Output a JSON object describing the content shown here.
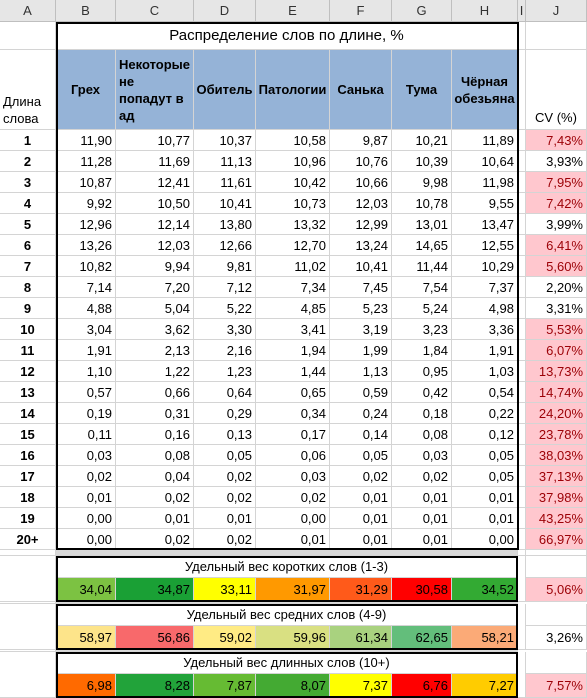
{
  "column_headers": [
    "A",
    "B",
    "C",
    "D",
    "E",
    "F",
    "G",
    "H",
    "I",
    "J"
  ],
  "table": {
    "title": "Распределение слов по длине, %",
    "row_header": "Длина слова",
    "headers": [
      "Грех",
      "Некоторые не попадут в ад",
      "Обитель",
      "Патологии",
      "Санька",
      "Тума",
      "Чёрная обезьяна"
    ],
    "cv_header": "CV (%)",
    "header_fill": "#95b3d7",
    "highlight_fill": "#ffc7ce",
    "highlight_text": "#9c0006",
    "rows": [
      {
        "label": "1",
        "values": [
          "11,90",
          "10,77",
          "10,37",
          "10,58",
          "9,87",
          "10,21",
          "11,89"
        ],
        "cv": "7,43%",
        "highlight": true
      },
      {
        "label": "2",
        "values": [
          "11,28",
          "11,69",
          "11,13",
          "10,96",
          "10,76",
          "10,39",
          "10,64"
        ],
        "cv": "3,93%",
        "highlight": false
      },
      {
        "label": "3",
        "values": [
          "10,87",
          "12,41",
          "11,61",
          "10,42",
          "10,66",
          "9,98",
          "11,98"
        ],
        "cv": "7,95%",
        "highlight": true
      },
      {
        "label": "4",
        "values": [
          "9,92",
          "10,50",
          "10,41",
          "10,73",
          "12,03",
          "10,78",
          "9,55"
        ],
        "cv": "7,42%",
        "highlight": true
      },
      {
        "label": "5",
        "values": [
          "12,96",
          "12,14",
          "13,80",
          "13,32",
          "12,99",
          "13,01",
          "13,47"
        ],
        "cv": "3,99%",
        "highlight": false
      },
      {
        "label": "6",
        "values": [
          "13,26",
          "12,03",
          "12,66",
          "12,70",
          "13,24",
          "14,65",
          "12,55"
        ],
        "cv": "6,41%",
        "highlight": true
      },
      {
        "label": "7",
        "values": [
          "10,82",
          "9,94",
          "9,81",
          "11,02",
          "10,41",
          "11,44",
          "10,29"
        ],
        "cv": "5,60%",
        "highlight": true
      },
      {
        "label": "8",
        "values": [
          "7,14",
          "7,20",
          "7,12",
          "7,34",
          "7,45",
          "7,54",
          "7,37"
        ],
        "cv": "2,20%",
        "highlight": false
      },
      {
        "label": "9",
        "values": [
          "4,88",
          "5,04",
          "5,22",
          "4,85",
          "5,23",
          "5,24",
          "4,98"
        ],
        "cv": "3,31%",
        "highlight": false
      },
      {
        "label": "10",
        "values": [
          "3,04",
          "3,62",
          "3,30",
          "3,41",
          "3,19",
          "3,23",
          "3,36"
        ],
        "cv": "5,53%",
        "highlight": true
      },
      {
        "label": "11",
        "values": [
          "1,91",
          "2,13",
          "2,16",
          "1,94",
          "1,99",
          "1,84",
          "1,91"
        ],
        "cv": "6,07%",
        "highlight": true
      },
      {
        "label": "12",
        "values": [
          "1,10",
          "1,22",
          "1,23",
          "1,44",
          "1,13",
          "0,95",
          "1,03"
        ],
        "cv": "13,73%",
        "highlight": true
      },
      {
        "label": "13",
        "values": [
          "0,57",
          "0,66",
          "0,64",
          "0,65",
          "0,59",
          "0,42",
          "0,54"
        ],
        "cv": "14,74%",
        "highlight": true
      },
      {
        "label": "14",
        "values": [
          "0,19",
          "0,31",
          "0,29",
          "0,34",
          "0,24",
          "0,18",
          "0,22"
        ],
        "cv": "24,20%",
        "highlight": true
      },
      {
        "label": "15",
        "values": [
          "0,11",
          "0,16",
          "0,13",
          "0,17",
          "0,14",
          "0,08",
          "0,12"
        ],
        "cv": "23,78%",
        "highlight": true
      },
      {
        "label": "16",
        "values": [
          "0,03",
          "0,08",
          "0,05",
          "0,06",
          "0,05",
          "0,03",
          "0,05"
        ],
        "cv": "38,03%",
        "highlight": true
      },
      {
        "label": "17",
        "values": [
          "0,02",
          "0,04",
          "0,02",
          "0,03",
          "0,02",
          "0,02",
          "0,05"
        ],
        "cv": "37,13%",
        "highlight": true
      },
      {
        "label": "18",
        "values": [
          "0,01",
          "0,02",
          "0,02",
          "0,02",
          "0,01",
          "0,01",
          "0,01"
        ],
        "cv": "37,98%",
        "highlight": true
      },
      {
        "label": "19",
        "values": [
          "0,00",
          "0,01",
          "0,01",
          "0,00",
          "0,01",
          "0,01",
          "0,01"
        ],
        "cv": "43,25%",
        "highlight": true
      },
      {
        "label": "20+",
        "values": [
          "0,00",
          "0,02",
          "0,02",
          "0,01",
          "0,01",
          "0,01",
          "0,00"
        ],
        "cv": "66,97%",
        "highlight": true
      }
    ]
  },
  "summary": [
    {
      "label": "Удельный вес коротких слов (1-3)",
      "values": [
        "34,04",
        "34,87",
        "33,11",
        "31,97",
        "31,29",
        "30,58",
        "34,52"
      ],
      "fills": [
        "#7cc242",
        "#1aa035",
        "#ffff00",
        "#ff9900",
        "#ff5a1a",
        "#ff0000",
        "#33aa33"
      ],
      "cv": "5,06%",
      "highlight": true
    },
    {
      "label": "Удельный вес средних слов (4-9)",
      "values": [
        "58,97",
        "56,86",
        "59,02",
        "59,96",
        "61,34",
        "62,65",
        "58,21"
      ],
      "fills": [
        "#fde48a",
        "#f8696b",
        "#ffeb84",
        "#d9e082",
        "#a9d27f",
        "#63be7b",
        "#fbaa77"
      ],
      "cv": "3,26%",
      "highlight": false
    },
    {
      "label": "Удельный вес длинных слов (10+)",
      "values": [
        "6,98",
        "8,28",
        "7,87",
        "8,07",
        "7,37",
        "6,76",
        "7,27"
      ],
      "fills": [
        "#ff6a00",
        "#22a33a",
        "#66bb33",
        "#44aa33",
        "#ffff00",
        "#ff0000",
        "#ffcc00"
      ],
      "cv": "7,57%",
      "highlight": true
    }
  ]
}
